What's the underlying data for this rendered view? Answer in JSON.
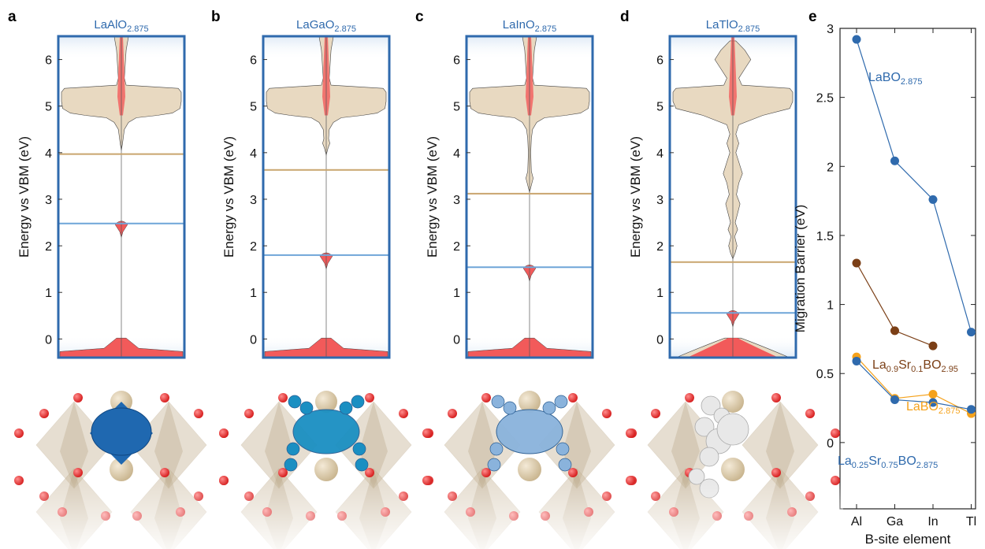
{
  "panels": [
    {
      "letter": "a",
      "formula": "LaAlO",
      "sub": "2.875"
    },
    {
      "letter": "b",
      "formula": "LaGaO",
      "sub": "2.875"
    },
    {
      "letter": "c",
      "formula": "LaInO",
      "sub": "2.875"
    },
    {
      "letter": "d",
      "formula": "LaTlO",
      "sub": "2.875"
    },
    {
      "letter": "e"
    }
  ],
  "colors": {
    "frame": "#2f6aad",
    "dos_fill": "#e8d9c1",
    "dos_red": "#f25a5a",
    "gold_line": "#c9a56e",
    "blue_line": "#6fa5d8",
    "series_LaBO": "#2f6aad",
    "series_LaSr01": "#7b3f16",
    "series_LaBO_orange": "#f5a21c",
    "series_LaSr075": "#2f6aad"
  },
  "chart_data": [
    {
      "type": "area",
      "panel": "a",
      "title": "LaAlO2.875",
      "ylabel": "Energy vs VBM (eV)",
      "ylim": [
        -0.4,
        6.5
      ],
      "yticks": [
        "0",
        "1",
        "2",
        "3",
        "4",
        "5",
        "6"
      ],
      "levels": {
        "gold": 3.97,
        "blue": 2.48
      }
    },
    {
      "type": "area",
      "panel": "b",
      "title": "LaGaO2.875",
      "ylabel": "Energy vs VBM (eV)",
      "ylim": [
        -0.4,
        6.5
      ],
      "yticks": [
        "0",
        "1",
        "2",
        "3",
        "4",
        "5",
        "6"
      ],
      "levels": {
        "gold": 3.63,
        "blue": 1.8
      }
    },
    {
      "type": "area",
      "panel": "c",
      "title": "LaInO2.875",
      "ylabel": "Energy vs VBM (eV)",
      "ylim": [
        -0.4,
        6.5
      ],
      "yticks": [
        "0",
        "1",
        "2",
        "3",
        "4",
        "5",
        "6"
      ],
      "levels": {
        "gold": 3.12,
        "blue": 1.54
      }
    },
    {
      "type": "area",
      "panel": "d",
      "title": "LaTlO2.875",
      "ylabel": "Energy vs VBM (eV)",
      "ylim": [
        -0.4,
        6.5
      ],
      "yticks": [
        "0",
        "1",
        "2",
        "3",
        "4",
        "5",
        "6"
      ],
      "levels": {
        "gold": 1.65,
        "blue": 0.56
      }
    },
    {
      "type": "line",
      "panel": "e",
      "xlabel": "B-site element",
      "ylabel": "Migration Barrier (eV)",
      "categories": [
        "Al",
        "Ga",
        "In",
        "Tl"
      ],
      "ylim": [
        -0.48,
        3.0
      ],
      "yticks": [
        "0",
        "0.5",
        "1",
        "1.5",
        "2",
        "2.5",
        "3"
      ],
      "series": [
        {
          "name": "LaBO",
          "sub": "2.875",
          "color": "#2f6aad",
          "values": [
            2.92,
            2.04,
            1.76,
            0.8
          ]
        },
        {
          "name": "La0.9Sr0.1BO2.95",
          "color": "#7b3f16",
          "values": [
            1.3,
            0.81,
            0.7,
            null
          ]
        },
        {
          "name": "LaBO",
          "sub": "2.875",
          "color": "#f5a21c",
          "values": [
            0.62,
            0.32,
            0.35,
            0.21
          ]
        },
        {
          "name": "La0.25Sr0.75BO2.875",
          "color": "#2f6aad",
          "values": [
            0.59,
            0.31,
            0.29,
            0.24
          ]
        }
      ]
    }
  ]
}
